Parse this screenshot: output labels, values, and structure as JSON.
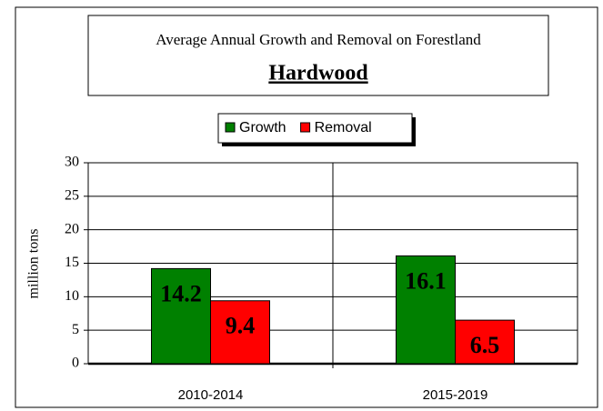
{
  "chart_data": {
    "type": "bar",
    "title": "Average Annual Growth and Removal on Forestland",
    "subtitle": "Hardwood",
    "y_label": "million tons",
    "categories": [
      "2010-2014",
      "2015-2019"
    ],
    "series": [
      {
        "name": "Growth",
        "color": "#008000",
        "values": [
          14.2,
          16.1
        ]
      },
      {
        "name": "Removal",
        "color": "#ff0000",
        "values": [
          9.4,
          6.5
        ]
      }
    ],
    "ylim": [
      0,
      30
    ],
    "yticks": [
      0,
      5,
      10,
      15,
      20,
      25,
      30
    ],
    "grid": true,
    "legend": "top"
  }
}
